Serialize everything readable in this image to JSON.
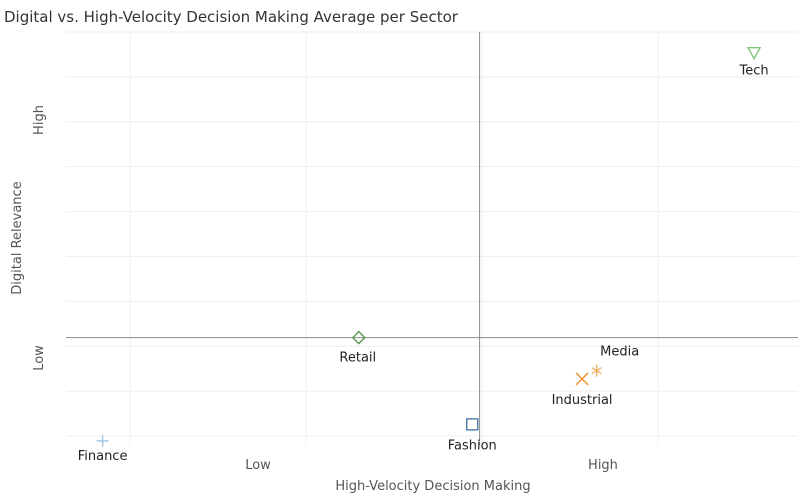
{
  "chart_data": {
    "type": "scatter",
    "title": "Digital vs. High-Velocity Decision Making Average per Sector",
    "xlabel": "High-Velocity Decision Making",
    "ylabel": "Digital Relevance",
    "x_tick_labels": [
      "Low",
      "High"
    ],
    "y_tick_labels": [
      "Low",
      "High"
    ],
    "grid": true,
    "xlim": [
      0,
      100
    ],
    "ylim": [
      0,
      100
    ],
    "reference_lines": {
      "x": 56.5,
      "y": 26
    },
    "points": [
      {
        "label": "Tech",
        "x": 94,
        "y": 95,
        "marker": "triangle-down",
        "color": "#7ec77a"
      },
      {
        "label": "Retail",
        "x": 40,
        "y": 26,
        "marker": "diamond",
        "color": "#5a9a4f"
      },
      {
        "label": "Media",
        "x": 72.5,
        "y": 18,
        "marker": "asterisk",
        "color": "#f4b266"
      },
      {
        "label": "Industrial",
        "x": 70.5,
        "y": 16,
        "marker": "x",
        "color": "#f28e2b"
      },
      {
        "label": "Fashion",
        "x": 55.5,
        "y": 5,
        "marker": "square",
        "color": "#4e79a7"
      },
      {
        "label": "Finance",
        "x": 5,
        "y": 1,
        "marker": "plus",
        "color": "#a6c8e4"
      }
    ]
  }
}
